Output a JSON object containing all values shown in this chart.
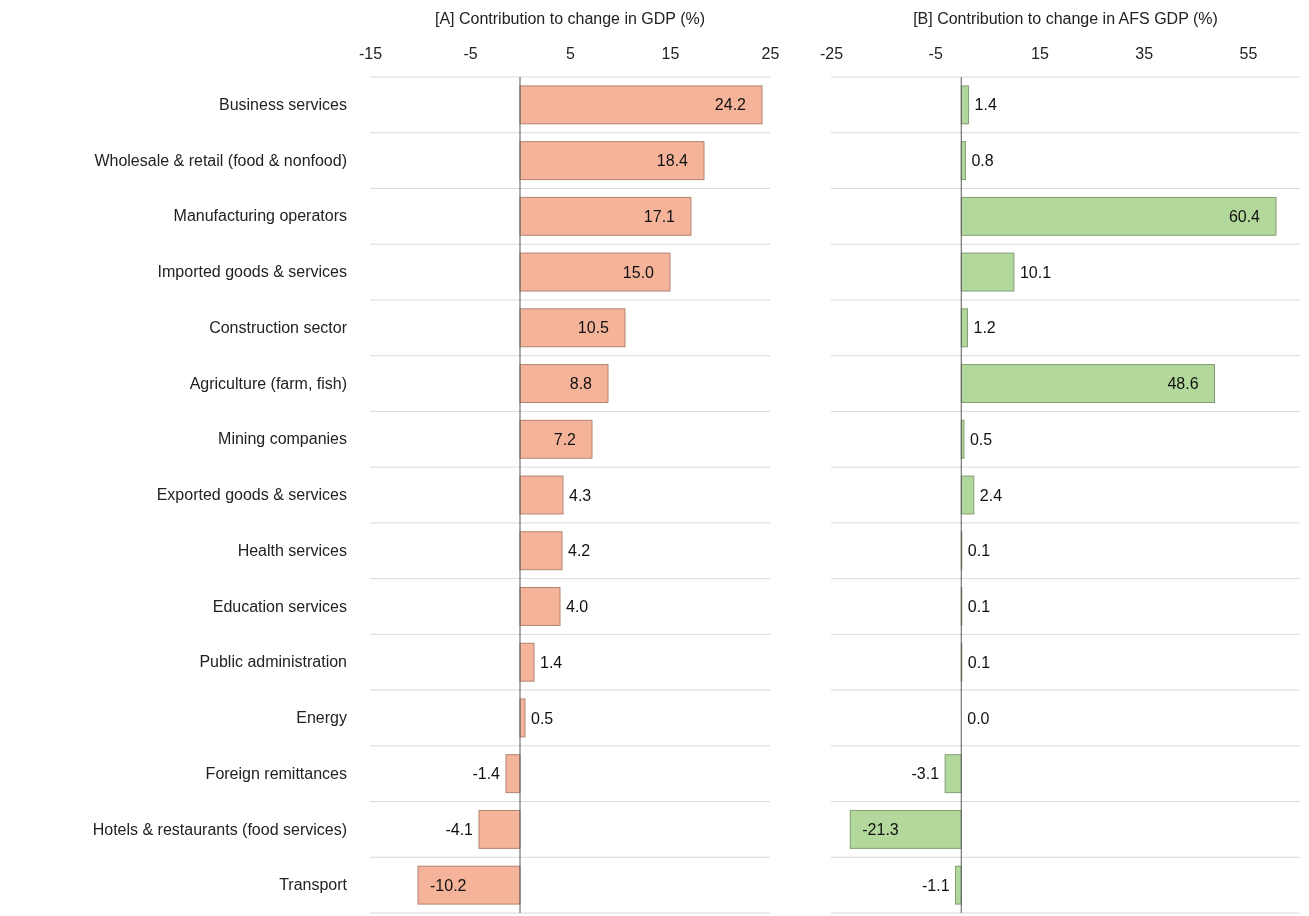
{
  "chart_data": [
    {
      "type": "bar",
      "orientation": "horizontal",
      "title": "[A] Contribution to change in GDP (%)",
      "categories": [
        "Business services",
        "Wholesale & retail (food & nonfood)",
        "Manufacturing operators",
        "Imported goods & services",
        "Construction sector",
        "Agriculture (farm, fish)",
        "Mining companies",
        "Exported goods & services",
        "Health services",
        "Education services",
        "Public administration",
        "Energy",
        "Foreign remittances",
        "Hotels & restaurants (food services)",
        "Transport"
      ],
      "values": [
        24.2,
        18.4,
        17.1,
        15.0,
        10.5,
        8.8,
        7.2,
        4.3,
        4.2,
        4.0,
        1.4,
        0.5,
        -1.4,
        -4.1,
        -10.2
      ],
      "value_labels": [
        "24.2",
        "18.4",
        "17.1",
        "15.0",
        "10.5",
        "8.8",
        "7.2",
        "4.3",
        "4.2",
        "4.0",
        "1.4",
        "0.5",
        "-1.4",
        "-4.1",
        "-10.2"
      ],
      "color": "#f5b49a",
      "xlim": [
        -15,
        25
      ],
      "xticks": [
        -15,
        -5,
        5,
        15,
        25
      ],
      "grid": "y"
    },
    {
      "type": "bar",
      "orientation": "horizontal",
      "title": "[B] Contribution to change in AFS GDP (%)",
      "categories": [
        null,
        null,
        null,
        null,
        null,
        null,
        null,
        null,
        null,
        null,
        null,
        null,
        null,
        null,
        null
      ],
      "values": [
        1.4,
        0.8,
        60.4,
        10.1,
        1.2,
        48.6,
        0.5,
        2.4,
        0.1,
        0.1,
        0.1,
        0.0,
        -3.1,
        -21.3,
        -1.1
      ],
      "value_labels": [
        "1.4",
        "0.8",
        "60.4",
        "10.1",
        "1.2",
        "48.6",
        "0.5",
        "2.4",
        "0.1",
        "0.1",
        "0.1",
        "0.0",
        "-3.1",
        "-21.3",
        "-1.1"
      ],
      "color": "#b3d89c",
      "xlim": [
        -25,
        65
      ],
      "xticks": [
        -25,
        -5,
        15,
        35,
        55
      ],
      "grid": "y",
      "tick_labels": "x"
    }
  ]
}
